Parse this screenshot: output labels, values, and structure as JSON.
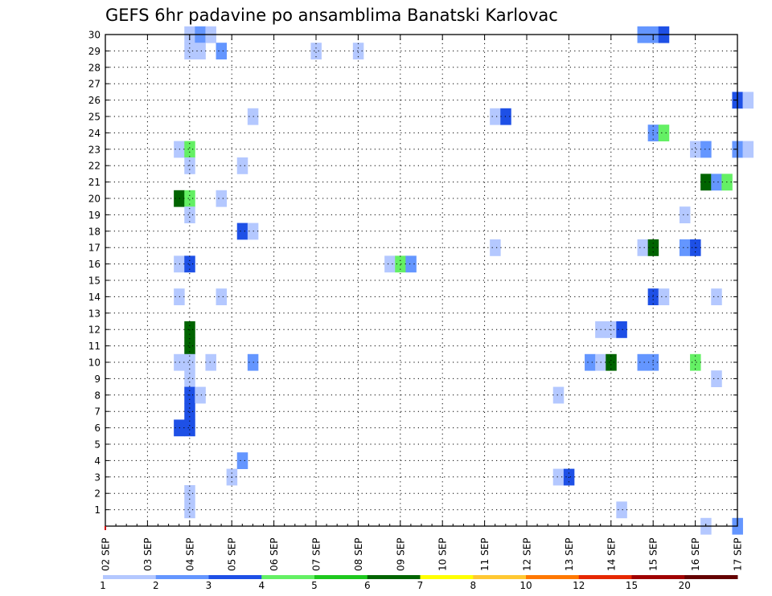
{
  "chart_data": {
    "type": "heatmap",
    "title": "GEFS 6hr padavine po ansamblima Banatski Karlovac",
    "xlabel": "",
    "ylabel": "",
    "x_tick_labels": [
      "02 SEP",
      "03 SEP",
      "04 SEP",
      "05 SEP",
      "06 SEP",
      "07 SEP",
      "08 SEP",
      "09 SEP",
      "10 SEP",
      "11 SEP",
      "12 SEP",
      "13 SEP",
      "14 SEP",
      "15 SEP",
      "16 SEP",
      "17 SEP"
    ],
    "y_tick_labels": [
      "1",
      "2",
      "3",
      "4",
      "5",
      "6",
      "7",
      "8",
      "9",
      "10",
      "11",
      "12",
      "13",
      "14",
      "15",
      "16",
      "17",
      "18",
      "19",
      "20",
      "21",
      "22",
      "23",
      "24",
      "25",
      "26",
      "27",
      "28",
      "29",
      "30"
    ],
    "ylim": [
      0,
      30
    ],
    "grid": true,
    "color_scale": {
      "colors": [
        "#b4c8ff",
        "#6496ff",
        "#1e50e6",
        "#64f064",
        "#1ec81e",
        "#006400",
        "#ffff00",
        "#ffc832",
        "#ff7800",
        "#e62800",
        "#a00000",
        "#640000"
      ],
      "labels": [
        "1",
        "2",
        "3",
        "4",
        "5",
        "6",
        "7",
        "8",
        "10",
        "12",
        "15",
        "20"
      ]
    },
    "cells": [
      {
        "time": "04 SEP 00",
        "member": 30,
        "value": 1
      },
      {
        "time": "04 SEP 06",
        "member": 30,
        "value": 2
      },
      {
        "time": "04 SEP 12",
        "member": 30,
        "value": 1
      },
      {
        "time": "14 SEP 18",
        "member": 30,
        "value": 2
      },
      {
        "time": "15 SEP 00",
        "member": 30,
        "value": 2
      },
      {
        "time": "15 SEP 06",
        "member": 30,
        "value": 3
      },
      {
        "time": "04 SEP 00",
        "member": 29,
        "value": 1
      },
      {
        "time": "04 SEP 06",
        "member": 29,
        "value": 1
      },
      {
        "time": "04 SEP 18",
        "member": 29,
        "value": 2
      },
      {
        "time": "07 SEP 00",
        "member": 29,
        "value": 1
      },
      {
        "time": "08 SEP 00",
        "member": 29,
        "value": 1
      },
      {
        "time": "17 SEP 00",
        "member": 26,
        "value": 3
      },
      {
        "time": "17 SEP 06",
        "member": 26,
        "value": 1
      },
      {
        "time": "05 SEP 12",
        "member": 25,
        "value": 1
      },
      {
        "time": "11 SEP 06",
        "member": 25,
        "value": 1
      },
      {
        "time": "11 SEP 12",
        "member": 25,
        "value": 3
      },
      {
        "time": "15 SEP 00",
        "member": 24,
        "value": 2
      },
      {
        "time": "15 SEP 06",
        "member": 24,
        "value": 4
      },
      {
        "time": "03 SEP 18",
        "member": 23,
        "value": 1
      },
      {
        "time": "04 SEP 00",
        "member": 23,
        "value": 4
      },
      {
        "time": "16 SEP 00",
        "member": 23,
        "value": 1
      },
      {
        "time": "16 SEP 06",
        "member": 23,
        "value": 2
      },
      {
        "time": "17 SEP 00",
        "member": 23,
        "value": 2
      },
      {
        "time": "17 SEP 06",
        "member": 23,
        "value": 1
      },
      {
        "time": "04 SEP 00",
        "member": 22,
        "value": 1
      },
      {
        "time": "05 SEP 06",
        "member": 22,
        "value": 1
      },
      {
        "time": "16 SEP 06",
        "member": 21,
        "value": 6
      },
      {
        "time": "16 SEP 12",
        "member": 21,
        "value": 2
      },
      {
        "time": "16 SEP 18",
        "member": 21,
        "value": 4
      },
      {
        "time": "03 SEP 18",
        "member": 20,
        "value": 6
      },
      {
        "time": "04 SEP 00",
        "member": 20,
        "value": 4
      },
      {
        "time": "04 SEP 18",
        "member": 20,
        "value": 1
      },
      {
        "time": "04 SEP 00",
        "member": 19,
        "value": 1
      },
      {
        "time": "15 SEP 18",
        "member": 19,
        "value": 1
      },
      {
        "time": "05 SEP 06",
        "member": 18,
        "value": 3
      },
      {
        "time": "05 SEP 12",
        "member": 18,
        "value": 1
      },
      {
        "time": "11 SEP 06",
        "member": 17,
        "value": 1
      },
      {
        "time": "14 SEP 18",
        "member": 17,
        "value": 1
      },
      {
        "time": "15 SEP 00",
        "member": 17,
        "value": 6
      },
      {
        "time": "15 SEP 18",
        "member": 17,
        "value": 2
      },
      {
        "time": "16 SEP 00",
        "member": 17,
        "value": 3
      },
      {
        "time": "03 SEP 18",
        "member": 16,
        "value": 1
      },
      {
        "time": "04 SEP 00",
        "member": 16,
        "value": 3
      },
      {
        "time": "08 SEP 18",
        "member": 16,
        "value": 1
      },
      {
        "time": "09 SEP 00",
        "member": 16,
        "value": 4
      },
      {
        "time": "09 SEP 06",
        "member": 16,
        "value": 2
      },
      {
        "time": "03 SEP 18",
        "member": 14,
        "value": 1
      },
      {
        "time": "04 SEP 18",
        "member": 14,
        "value": 1
      },
      {
        "time": "15 SEP 00",
        "member": 14,
        "value": 3
      },
      {
        "time": "15 SEP 06",
        "member": 14,
        "value": 1
      },
      {
        "time": "16 SEP 12",
        "member": 14,
        "value": 1
      },
      {
        "time": "04 SEP 00",
        "member": 12,
        "value": 6
      },
      {
        "time": "13 SEP 18",
        "member": 12,
        "value": 1
      },
      {
        "time": "14 SEP 00",
        "member": 12,
        "value": 1
      },
      {
        "time": "14 SEP 06",
        "member": 12,
        "value": 3
      },
      {
        "time": "04 SEP 00",
        "member": 11,
        "value": 6
      },
      {
        "time": "03 SEP 18",
        "member": 10,
        "value": 1
      },
      {
        "time": "04 SEP 00",
        "member": 10,
        "value": 1
      },
      {
        "time": "04 SEP 12",
        "member": 10,
        "value": 1
      },
      {
        "time": "05 SEP 12",
        "member": 10,
        "value": 2
      },
      {
        "time": "13 SEP 12",
        "member": 10,
        "value": 2
      },
      {
        "time": "13 SEP 18",
        "member": 10,
        "value": 1
      },
      {
        "time": "14 SEP 00",
        "member": 10,
        "value": 6
      },
      {
        "time": "14 SEP 18",
        "member": 10,
        "value": 2
      },
      {
        "time": "15 SEP 00",
        "member": 10,
        "value": 2
      },
      {
        "time": "16 SEP 00",
        "member": 10,
        "value": 4
      },
      {
        "time": "04 SEP 00",
        "member": 9,
        "value": 1
      },
      {
        "time": "16 SEP 12",
        "member": 9,
        "value": 1
      },
      {
        "time": "04 SEP 00",
        "member": 8,
        "value": 3
      },
      {
        "time": "04 SEP 06",
        "member": 8,
        "value": 1
      },
      {
        "time": "12 SEP 18",
        "member": 8,
        "value": 1
      },
      {
        "time": "04 SEP 00",
        "member": 7,
        "value": 3
      },
      {
        "time": "03 SEP 18",
        "member": 6,
        "value": 3
      },
      {
        "time": "04 SEP 00",
        "member": 6,
        "value": 3
      },
      {
        "time": "05 SEP 06",
        "member": 4,
        "value": 2
      },
      {
        "time": "05 SEP 00",
        "member": 3,
        "value": 1
      },
      {
        "time": "12 SEP 18",
        "member": 3,
        "value": 1
      },
      {
        "time": "13 SEP 00",
        "member": 3,
        "value": 3
      },
      {
        "time": "04 SEP 00",
        "member": 2,
        "value": 1
      },
      {
        "time": "04 SEP 00",
        "member": 1,
        "value": 1
      },
      {
        "time": "14 SEP 06",
        "member": 1,
        "value": 1
      },
      {
        "time": "16 SEP 06",
        "member": 0,
        "value": 1
      },
      {
        "time": "17 SEP 00",
        "member": 0,
        "value": 2
      }
    ]
  }
}
